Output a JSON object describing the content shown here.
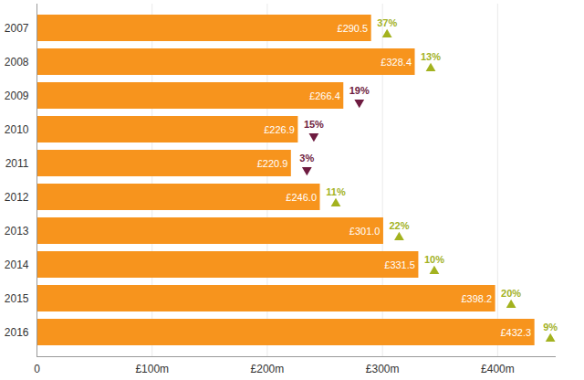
{
  "chart_data": {
    "type": "bar",
    "orientation": "horizontal",
    "categories": [
      "2007",
      "2008",
      "2009",
      "2010",
      "2011",
      "2012",
      "2013",
      "2014",
      "2015",
      "2016"
    ],
    "values": [
      290.5,
      328.4,
      266.4,
      226.9,
      220.9,
      246.0,
      301.0,
      331.5,
      398.2,
      432.3
    ],
    "value_labels": [
      "£290.5",
      "£328.4",
      "£266.4",
      "£226.9",
      "£220.9",
      "£246.0",
      "£301.0",
      "£331.5",
      "£398.2",
      "£432.3"
    ],
    "data_labels": true,
    "color": "#f7941d",
    "change": {
      "values": [
        37,
        13,
        -19,
        -15,
        -3,
        11,
        22,
        10,
        20,
        9
      ],
      "value_labels": [
        "37%",
        "13%",
        "19%",
        "15%",
        "3%",
        "11%",
        "22%",
        "10%",
        "20%",
        "9%"
      ],
      "colors": {
        "up": "#a3b21f",
        "down": "#6e1b40"
      }
    },
    "xlim": [
      0,
      450
    ],
    "xticks": [
      0,
      {
        "value": 100,
        "label": "£100m"
      },
      {
        "value": 200,
        "label": "£200m"
      },
      {
        "value": 300,
        "label": "£300m"
      },
      {
        "value": 400,
        "label": "£400m"
      }
    ],
    "grid": true
  }
}
